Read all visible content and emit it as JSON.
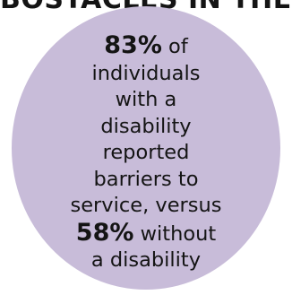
{
  "header": {
    "partial_title": "BOSTACLES IN THE CO"
  },
  "stat": {
    "percent_with": "83%",
    "text_of": "of",
    "line2": "individuals",
    "line3": "with a",
    "line4": "disability",
    "line5": "reported",
    "line6": "barriers to",
    "line7": "service, versus",
    "percent_without": "58%",
    "text_without": "without",
    "line9": "a disability"
  },
  "colors": {
    "circle": "#c8bcd9",
    "text": "#141414"
  }
}
